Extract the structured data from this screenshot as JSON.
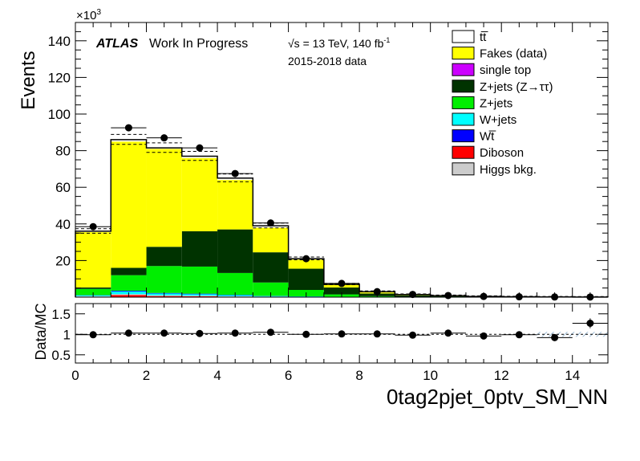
{
  "chart_data": {
    "type": "stacked-histogram",
    "title": "",
    "xlabel": "0tag2pjet_0ptv_SM_NN",
    "ylabel": "Events",
    "ylabel_ratio": "Data/MC",
    "y_multiplier": "×10",
    "y_multiplier_exp": "3",
    "xlim": [
      0,
      15
    ],
    "ylim": [
      0,
      150
    ],
    "ratio_ylim": [
      0.3,
      1.75
    ],
    "x_ticks": [
      "0",
      "2",
      "4",
      "6",
      "8",
      "10",
      "12",
      "14"
    ],
    "y_ticks": [
      "20",
      "40",
      "60",
      "80",
      "100",
      "120",
      "140"
    ],
    "ratio_ticks": [
      "0.5",
      "1",
      "1.5"
    ],
    "bin_edges": [
      0,
      1,
      2,
      3,
      4,
      5,
      6,
      7,
      8,
      9,
      10,
      11,
      12,
      13,
      14,
      15
    ],
    "annotations": {
      "atlas": "ATLAS",
      "status": "Work In Progress",
      "energy_prefix": "√s = 13 TeV, 140 fb",
      "energy_exp": "-1",
      "data_period": "2015-2018 data"
    },
    "series": [
      {
        "name": "Diboson",
        "color": "#ff0000",
        "values": [
          0.3,
          1.2,
          0.6,
          0.5,
          0.3,
          0.2,
          0.1,
          0.05,
          0,
          0,
          0,
          0,
          0,
          0,
          0
        ]
      },
      {
        "name": "Higgs bkg.",
        "color": "#cccccc",
        "values": [
          0.2,
          0.4,
          0.4,
          0.3,
          0.2,
          0.1,
          0.1,
          0,
          0,
          0,
          0,
          0,
          0,
          0,
          0
        ]
      },
      {
        "name": "W+jets",
        "color": "#00ffff",
        "values": [
          0.5,
          1.5,
          1.0,
          0.8,
          0.6,
          0.3,
          0.2,
          0.05,
          0,
          0,
          0,
          0,
          0,
          0,
          0
        ]
      },
      {
        "name": "Wt̅",
        "label": "Wt",
        "color": "#0000ff",
        "values": [
          0.1,
          0.4,
          0.3,
          0.3,
          0.2,
          0.1,
          0.05,
          0,
          0,
          0,
          0,
          0,
          0,
          0,
          0
        ]
      },
      {
        "name": "Z+jets",
        "color": "#00ee00",
        "values": [
          3.4,
          8.5,
          14.7,
          14.8,
          11.9,
          7.3,
          3.5,
          1.4,
          0.5,
          0.2,
          0.1,
          0.05,
          0,
          0,
          0
        ]
      },
      {
        "name": "Z+jets (Z→ττ)",
        "color": "#003300",
        "values": [
          0.8,
          4.0,
          10.5,
          19.3,
          23.8,
          16.5,
          11.6,
          3.8,
          1.5,
          0.8,
          0.4,
          0.2,
          0.1,
          0.05,
          0.02
        ]
      },
      {
        "name": "single top",
        "color": "#cc00ff",
        "values": [
          0,
          0,
          0,
          0,
          0,
          0,
          0,
          0,
          0,
          0,
          0,
          0,
          0,
          0,
          0
        ]
      },
      {
        "name": "Fakes (data)",
        "color": "#ffff00",
        "values": [
          30.2,
          69.0,
          53.5,
          40.0,
          27.0,
          13.5,
          5.0,
          1.5,
          0.6,
          0.3,
          0.2,
          0.1,
          0.05,
          0,
          0
        ]
      },
      {
        "name": "tt̅",
        "label": "tt",
        "color": "#ffffff",
        "values": [
          0,
          0.5,
          0.5,
          0.5,
          0.5,
          0.5,
          0.3,
          0.1,
          0.05,
          0,
          0,
          0,
          0,
          0,
          0
        ]
      }
    ],
    "mc_total": [
      36.0,
      86.0,
      81.5,
      77.0,
      65.0,
      39.0,
      21.0,
      7.0,
      3.0,
      1.4,
      0.8,
      0.4,
      0.2,
      0.1,
      0.05
    ],
    "data": [
      38.5,
      92.5,
      87.0,
      81.5,
      67.5,
      40.5,
      21.0,
      7.5,
      3.0,
      1.5,
      0.9,
      0.4,
      0.2,
      0.1,
      0.08
    ],
    "ratio": [
      0.99,
      1.03,
      1.03,
      1.02,
      1.03,
      1.05,
      1.0,
      1.01,
      1.01,
      0.98,
      1.03,
      0.96,
      0.99,
      0.92,
      1.27
    ],
    "legend": [
      {
        "label": "tt̅",
        "color": "#ffffff"
      },
      {
        "label": "Fakes (data)",
        "color": "#ffff00"
      },
      {
        "label": "single top",
        "color": "#cc00ff"
      },
      {
        "label": "Z+jets (Z→ττ)",
        "color": "#003300"
      },
      {
        "label": "Z+jets",
        "color": "#00ee00"
      },
      {
        "label": "W+jets",
        "color": "#00ffff"
      },
      {
        "label": "Wt̅",
        "color": "#0000ff"
      },
      {
        "label": "Diboson",
        "color": "#ff0000"
      },
      {
        "label": "Higgs bkg.",
        "color": "#cccccc"
      }
    ],
    "legend_position": "top-right"
  }
}
